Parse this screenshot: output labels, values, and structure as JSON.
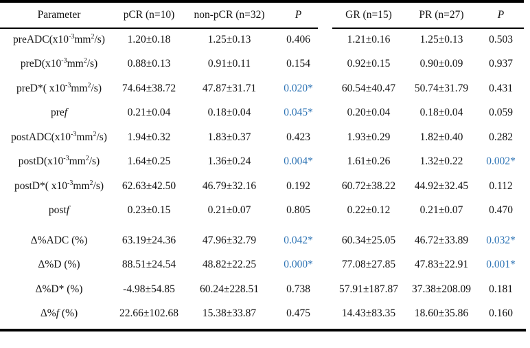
{
  "colors": {
    "significant_p": "#2E74B5",
    "text": "#121212",
    "rule": "#000000"
  },
  "table": {
    "header": [
      "Parameter",
      "pCR (n=10)",
      "non-pCR (n=32)",
      "~P~",
      "GR (n=15)",
      "PR (n=27)",
      "~P~"
    ],
    "rows": [
      {
        "param": "preADC(x10^-3^mm^2^/s)",
        "values": [
          "1.20±0.18",
          "1.25±0.13",
          "0.406",
          "1.21±0.16",
          "1.25±0.13",
          "0.503"
        ]
      },
      {
        "param": "preD(x10^-3^mm^2^/s)",
        "values": [
          "0.88±0.13",
          "0.91±0.11",
          "0.154",
          "0.92±0.15",
          "0.90±0.09",
          "0.937"
        ]
      },
      {
        "param": "preD*( x10^-3^mm^2^/s)",
        "values": [
          "74.64±38.72",
          "47.87±31.71",
          "0.020*",
          "60.54±40.47",
          "50.74±31.79",
          "0.431"
        ]
      },
      {
        "param": "pre~f~",
        "values": [
          "0.21±0.04",
          "0.18±0.04",
          "0.045*",
          "0.20±0.04",
          "0.18±0.04",
          "0.059"
        ]
      },
      {
        "param": "postADC(x10^-3^mm^2^/s)",
        "values": [
          "1.94±0.32",
          "1.83±0.37",
          "0.423",
          "1.93±0.29",
          "1.82±0.40",
          "0.282"
        ]
      },
      {
        "param": "postD(x10^-3^mm^2^/s)",
        "values": [
          "1.64±0.25",
          "1.36±0.24",
          "0.004*",
          "1.61±0.26",
          "1.32±0.22",
          "0.002*"
        ]
      },
      {
        "param": "postD*( x10^-3^mm^2^/s)",
        "values": [
          "62.63±42.50",
          "46.79±32.16",
          "0.192",
          "60.72±38.22",
          "44.92±32.45",
          "0.112"
        ]
      },
      {
        "param": "post~f~",
        "values": [
          "0.23±0.15",
          "0.21±0.07",
          "0.805",
          "0.22±0.12",
          "0.21±0.07",
          "0.470"
        ]
      },
      {
        "param": "Δ%ADC (%)",
        "values": [
          "63.19±24.36",
          "47.96±32.79",
          "0.042*",
          "60.34±25.05",
          "46.72±33.89",
          "0.032*"
        ]
      },
      {
        "param": "Δ%D (%)",
        "values": [
          "88.51±24.54",
          "48.82±22.25",
          "0.000*",
          "77.08±27.85",
          "47.83±22.91",
          "0.001*"
        ]
      },
      {
        "param": "Δ%D* (%)",
        "values": [
          "-4.98±54.85",
          "60.24±228.51",
          "0.738",
          "57.91±187.87",
          "37.38±208.09",
          "0.181"
        ]
      },
      {
        "param": "Δ%~f~ (%)",
        "values": [
          "22.66±102.68",
          "15.38±33.87",
          "0.475",
          "14.43±83.35",
          "18.60±35.86",
          "0.160"
        ]
      }
    ]
  }
}
